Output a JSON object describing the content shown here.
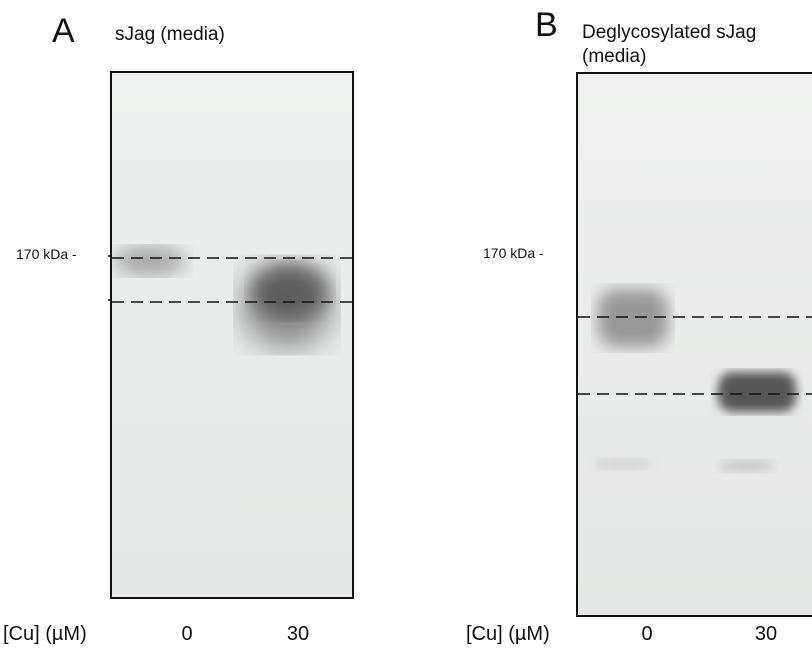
{
  "panels": [
    {
      "letter": "A",
      "title": "sJag (media)",
      "marker": "170 kDa -",
      "axis_label": "[Cu] (µM)",
      "lanes": [
        "0",
        "30"
      ]
    },
    {
      "letter": "B",
      "title_line1": "Deglycosylated sJag",
      "title_line2": "(media)",
      "marker": "170 kDa -",
      "axis_label": "[Cu] (µM)",
      "lanes": [
        "0",
        "30"
      ]
    }
  ],
  "colors": {
    "border": "#111111",
    "blot_bg": "#eceeed",
    "band": "#555555"
  }
}
